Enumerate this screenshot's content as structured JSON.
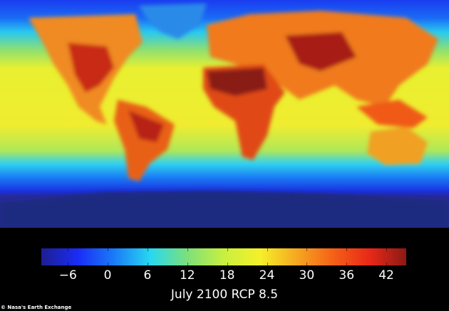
{
  "map": {
    "type": "global surface temperature map",
    "projection": "equirectangular",
    "colors": {
      "coldest": "#1d1f8f",
      "blue": "#1a3cf0",
      "cyan": "#28d8f0",
      "green": "#7de07a",
      "yellow": "#f5f02a",
      "orange": "#f59a20",
      "red": "#e82818",
      "darkred": "#8a1a14"
    }
  },
  "colorbar": {
    "range": [
      -10,
      45
    ],
    "ticks": [
      "−6",
      "0",
      "6",
      "12",
      "18",
      "24",
      "30",
      "36",
      "42"
    ],
    "tick_values": [
      -6,
      0,
      6,
      12,
      18,
      24,
      30,
      36,
      42
    ],
    "stops": [
      "#1d1f8f",
      "#1a2cf5",
      "#1a7cf8",
      "#28d8f0",
      "#7de07a",
      "#c8f040",
      "#f5f02a",
      "#f5a820",
      "#f56018",
      "#e82818",
      "#8a1a14"
    ]
  },
  "title": "July 2100 RCP 8.5",
  "credit": "© Nasa's Earth Exchange"
}
